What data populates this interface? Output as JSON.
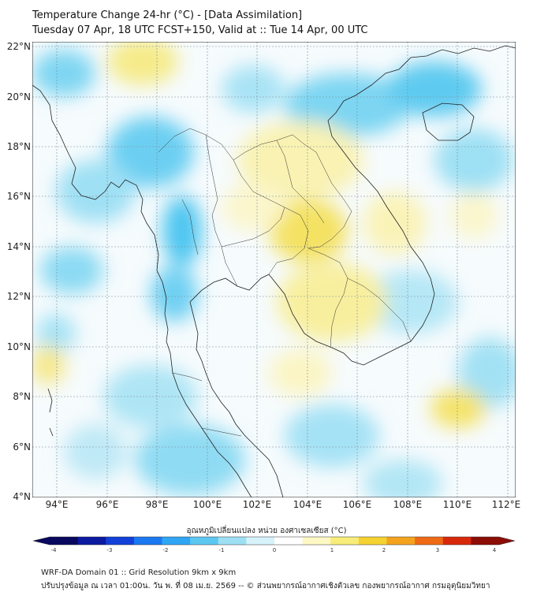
{
  "title": {
    "line1": "Temperature Change 24-hr (°C) - [Data Assimilation]",
    "line2": "Tuesday 07 Apr, 18 UTC FCST+150, Valid at :: Tue 14 Apr, 00 UTC"
  },
  "map": {
    "lat_labels": [
      "22°N",
      "20°N",
      "18°N",
      "16°N",
      "14°N",
      "12°N",
      "10°N",
      "8°N",
      "6°N",
      "4°N"
    ],
    "lon_labels": [
      "94°E",
      "96°E",
      "98°E",
      "100°E",
      "102°E",
      "104°E",
      "106°E",
      "108°E",
      "110°E",
      "112°E"
    ]
  },
  "colorbar": {
    "title": "อุณหภูมิเปลี่ยนแปลง หน่วย องศาเซลเซียส (°C)",
    "ticks": [
      "-4",
      "-3",
      "-2",
      "-1",
      "0",
      "1",
      "2",
      "3",
      "4"
    ],
    "colors": [
      "#08085e",
      "#0c1aa0",
      "#1240d8",
      "#1a78f0",
      "#2ea6f4",
      "#5cc8f2",
      "#9edff4",
      "#d6f2fa",
      "#ffffff",
      "#fdf8c4",
      "#f8ec7a",
      "#f4d232",
      "#f3a31e",
      "#ef6a14",
      "#d8280c",
      "#8c0c06"
    ]
  },
  "footer": {
    "line1": "WRF-DA Domain 01 :: Grid Resolution 9km x 9km",
    "line2": "ปรับปรุงข้อมูล ณ เวลา 01:00น. วัน พ. ที่ 08 เม.ย. 2569 -- © ส่วนพยากรณ์อากาศเชิงตัวเลข กองพยากรณ์อากาศ กรมอุตุนิยมวิทยา"
  }
}
